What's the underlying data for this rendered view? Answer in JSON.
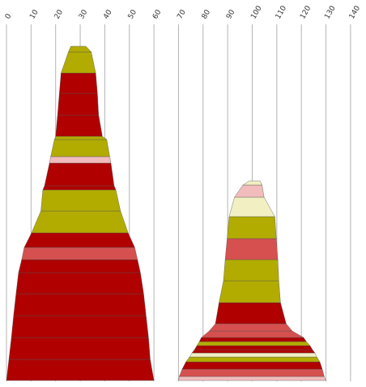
{
  "colors": {
    "dark_red": "#B00000",
    "olive": "#B2AC00",
    "salmon": "#D65050",
    "pink": "#F2BCBC",
    "cream": "#F2F0C2",
    "grid": "#B4B4B4",
    "outline": "#555555"
  },
  "chart_data": {
    "type": "stacked-trapezoid-columns",
    "grid": true,
    "x_axis": {
      "position": "top",
      "ticks": [
        "0",
        "10",
        "20",
        "30",
        "40",
        "50",
        "60",
        "70",
        "80",
        "90",
        "100",
        "110",
        "120",
        "130",
        "140"
      ],
      "range": [
        0,
        140
      ]
    },
    "left_stack": {
      "center_x": 30,
      "layers_bottom_to_top": [
        {
          "color": "dark_red",
          "bottom": [
            0,
            60
          ],
          "top": [
            1,
            58.5
          ]
        },
        {
          "color": "dark_red",
          "bottom": [
            1,
            58.5
          ],
          "top": [
            2,
            57.8
          ]
        },
        {
          "color": "dark_red",
          "bottom": [
            2,
            57.8
          ],
          "top": [
            2.9,
            56.8
          ]
        },
        {
          "color": "dark_red",
          "bottom": [
            2.9,
            56.8
          ],
          "top": [
            3.9,
            55.8
          ]
        },
        {
          "color": "dark_red",
          "bottom": [
            3.9,
            55.8
          ],
          "top": [
            4.9,
            54.5
          ]
        },
        {
          "color": "dark_red",
          "bottom": [
            4.9,
            54.5
          ],
          "top": [
            6.2,
            53.3
          ]
        },
        {
          "color": "salmon",
          "bottom": [
            6.2,
            53.3
          ],
          "top": [
            7.2,
            52.2
          ]
        },
        {
          "color": "dark_red",
          "bottom": [
            7.2,
            52.2
          ],
          "top": [
            10.2,
            49.5
          ]
        },
        {
          "color": "olive",
          "bottom": [
            10.2,
            49.5
          ],
          "top": [
            14,
            46.4
          ]
        },
        {
          "color": "olive",
          "bottom": [
            14,
            46.4
          ],
          "top": [
            14.8,
            44.5
          ]
        },
        {
          "color": "dark_red",
          "bottom": [
            14.8,
            44.5
          ],
          "top": [
            15.5,
            43.8
          ]
        },
        {
          "color": "dark_red",
          "bottom": [
            15.5,
            43.8
          ],
          "top": [
            17.5,
            42.5
          ]
        },
        {
          "color": "pink",
          "bottom": [
            17.5,
            42.5
          ],
          "top": [
            18,
            42
          ]
        },
        {
          "color": "olive",
          "bottom": [
            18,
            42
          ],
          "top": [
            19.5,
            40.8
          ]
        },
        {
          "color": "olive",
          "bottom": [
            19.5,
            40.8
          ],
          "top": [
            20,
            39
          ]
        },
        {
          "color": "dark_red",
          "bottom": [
            20,
            39
          ],
          "top": [
            20.8,
            37.5
          ]
        },
        {
          "color": "dark_red",
          "bottom": [
            20.8,
            37.5
          ],
          "top": [
            21.5,
            37
          ]
        },
        {
          "color": "dark_red",
          "bottom": [
            21.5,
            37
          ],
          "top": [
            22.2,
            36.3
          ]
        },
        {
          "color": "olive",
          "bottom": [
            22.2,
            36.3
          ],
          "top": [
            25.2,
            34.5
          ]
        },
        {
          "color": "olive",
          "bottom": [
            25.2,
            34.5
          ],
          "top": [
            26.2,
            32.3
          ]
        }
      ]
    },
    "right_stack": {
      "center_x": 101,
      "layers_bottom_to_top": [
        {
          "color": "pink",
          "bottom": [
            70,
            130
          ],
          "top": [
            70.3,
            129.3
          ]
        },
        {
          "color": "salmon",
          "bottom": [
            70.3,
            129.3
          ],
          "top": [
            71.5,
            128.5
          ]
        },
        {
          "color": "dark_red",
          "bottom": [
            71.5,
            128.5
          ],
          "top": [
            73,
            127.5
          ]
        },
        {
          "color": "olive",
          "bottom": [
            73,
            127.5
          ],
          "top": [
            74.5,
            126.3
          ]
        },
        {
          "color": "cream",
          "bottom": [
            74.5,
            126.3
          ],
          "top": [
            75.5,
            125.5
          ]
        },
        {
          "color": "dark_red",
          "bottom": [
            75.5,
            125.5
          ],
          "top": [
            76.5,
            124.5
          ]
        },
        {
          "color": "dark_red",
          "bottom": [
            76.5,
            124.5
          ],
          "top": [
            77.5,
            123.5
          ]
        },
        {
          "color": "olive",
          "bottom": [
            77.5,
            123.5
          ],
          "top": [
            78.5,
            122
          ]
        },
        {
          "color": "dark_red",
          "bottom": [
            78.5,
            122
          ],
          "top": [
            79.3,
            120.9
          ]
        },
        {
          "color": "salmon",
          "bottom": [
            79.3,
            120.9
          ],
          "top": [
            82.5,
            116.3
          ]
        },
        {
          "color": "salmon",
          "bottom": [
            82.5,
            116.3
          ],
          "top": [
            85,
            113.8
          ]
        },
        {
          "color": "dark_red",
          "bottom": [
            85,
            113.8
          ],
          "top": [
            86.5,
            111.5
          ]
        },
        {
          "color": "olive",
          "bottom": [
            86.5,
            111.5
          ],
          "top": [
            88.3,
            110.8
          ]
        },
        {
          "color": "olive",
          "bottom": [
            88.3,
            110.8
          ],
          "top": [
            89,
            110.4
          ]
        },
        {
          "color": "salmon",
          "bottom": [
            89,
            110.4
          ],
          "top": [
            89.8,
            109.8
          ]
        },
        {
          "color": "olive",
          "bottom": [
            89.8,
            109.8
          ],
          "top": [
            90.6,
            109.2
          ]
        },
        {
          "color": "cream",
          "bottom": [
            90.6,
            109.2
          ],
          "top": [
            92.8,
            104.8
          ]
        },
        {
          "color": "pink",
          "bottom": [
            92.8,
            104.8
          ],
          "top": [
            96.2,
            104
          ]
        },
        {
          "color": "cream",
          "bottom": [
            96.2,
            104
          ],
          "top": [
            98.8,
            103.2
          ]
        }
      ]
    }
  }
}
